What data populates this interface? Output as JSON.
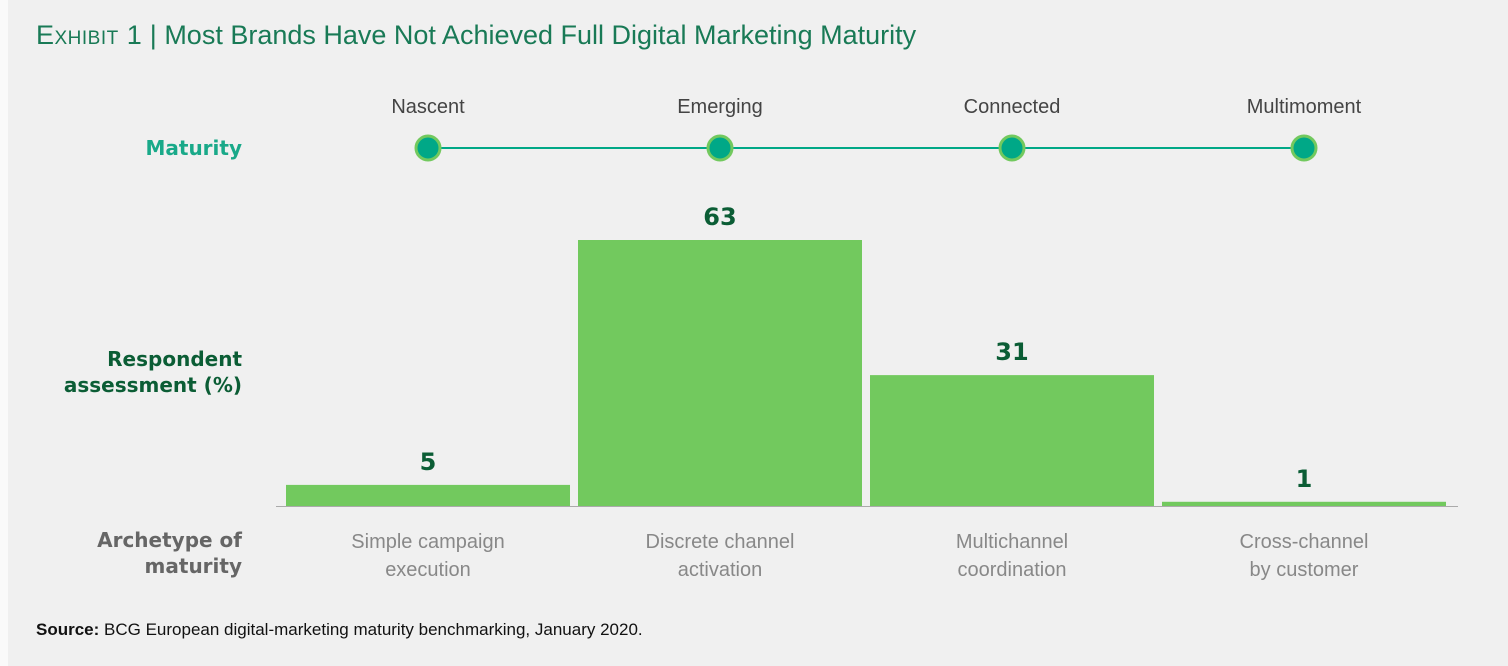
{
  "title": {
    "lead": "Exhibit 1",
    "separator": "|",
    "text": "Most Brands Have Not Achieved Full Digital Marketing Maturity"
  },
  "row_labels": {
    "maturity": "Maturity",
    "assessment_line1": "Respondent",
    "assessment_line2": "assessment (%)",
    "archetype_line1": "Archetype of",
    "archetype_line2": "maturity"
  },
  "colors": {
    "title": "#197a56",
    "bar": "#72c95e",
    "node": "#00a887",
    "node_ring": "#72c95e",
    "label_dark": "#0b5d35",
    "maturity_label": "#19a989",
    "category_text": "#888888"
  },
  "chart_data": {
    "type": "bar",
    "maturity_stages": [
      "Nascent",
      "Emerging",
      "Connected",
      "Multimoment"
    ],
    "categories": [
      [
        "Simple campaign",
        "execution"
      ],
      [
        "Discrete channel",
        "activation"
      ],
      [
        "Multichannel",
        "coordination"
      ],
      [
        "Cross-channel",
        "by customer"
      ]
    ],
    "values": [
      5,
      63,
      31,
      1
    ],
    "ylabel": "Respondent assessment (%)",
    "xlabel": "Archetype of maturity",
    "grid": false
  },
  "source": {
    "label": "Source:",
    "text": " BCG European digital-marketing maturity benchmarking, January 2020."
  }
}
